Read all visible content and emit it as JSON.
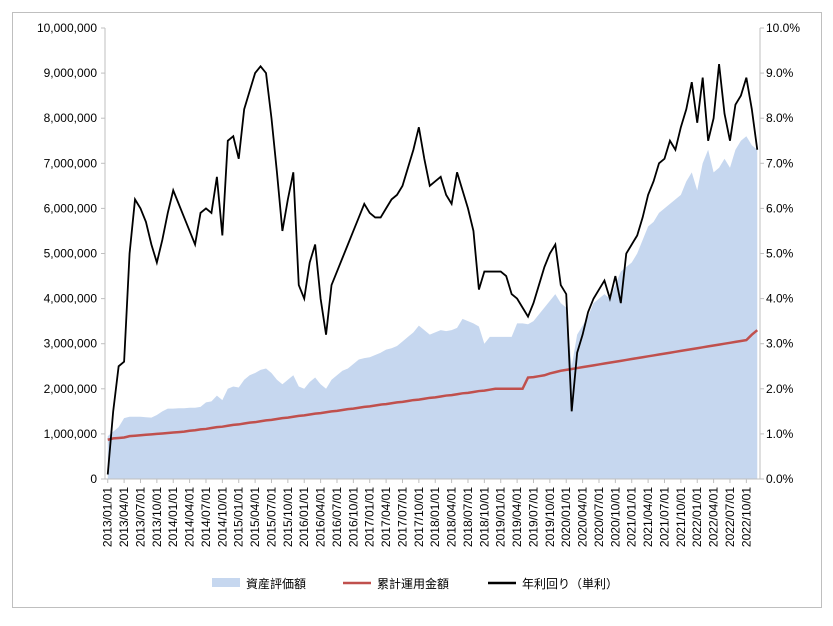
{
  "chart_data": {
    "type": "line",
    "categories": [
      "2013/01/01",
      null,
      null,
      "2013/04/01",
      null,
      null,
      "2013/07/01",
      null,
      null,
      "2013/10/01",
      null,
      null,
      "2014/01/01",
      null,
      null,
      "2014/04/01",
      null,
      null,
      "2014/07/01",
      null,
      null,
      "2014/10/01",
      null,
      null,
      "2015/01/01",
      null,
      null,
      "2015/04/01",
      null,
      null,
      "2015/07/01",
      null,
      null,
      "2015/10/01",
      null,
      null,
      "2016/01/01",
      null,
      null,
      "2016/04/01",
      null,
      null,
      "2016/07/01",
      null,
      null,
      "2016/10/01",
      null,
      null,
      "2017/01/01",
      null,
      null,
      "2017/04/01",
      null,
      null,
      "2017/07/01",
      null,
      null,
      "2017/10/01",
      null,
      null,
      "2018/01/01",
      null,
      null,
      "2018/04/01",
      null,
      null,
      "2018/07/01",
      null,
      null,
      "2018/10/01",
      null,
      null,
      "2019/01/01",
      null,
      null,
      "2019/04/01",
      null,
      null,
      "2019/07/01",
      null,
      null,
      "2019/10/01",
      null,
      null,
      "2020/01/01",
      null,
      null,
      "2020/04/01",
      null,
      null,
      "2020/07/01",
      null,
      null,
      "2020/10/01",
      null,
      null,
      "2021/01/01",
      null,
      null,
      "2021/04/01",
      null,
      null,
      "2021/07/01",
      null,
      null,
      "2021/10/01",
      null,
      null,
      "2022/01/01",
      null,
      null,
      "2022/04/01",
      null,
      null,
      "2022/07/01",
      null,
      null,
      "2022/10/01",
      null,
      null
    ],
    "series": [
      {
        "name": "資産評価額",
        "type": "area",
        "color": "#c6d7ef",
        "values": [
          950000,
          1050000,
          1150000,
          1350000,
          1380000,
          1380000,
          1380000,
          1370000,
          1360000,
          1420000,
          1500000,
          1560000,
          1560000,
          1570000,
          1570000,
          1580000,
          1580000,
          1600000,
          1700000,
          1720000,
          1850000,
          1750000,
          2000000,
          2050000,
          2030000,
          2200000,
          2300000,
          2350000,
          2420000,
          2450000,
          2350000,
          2200000,
          2100000,
          2200000,
          2300000,
          2050000,
          2000000,
          2150000,
          2250000,
          2100000,
          2000000,
          2200000,
          2300000,
          2400000,
          2450000,
          2550000,
          2650000,
          2680000,
          2700000,
          2750000,
          2800000,
          2870000,
          2900000,
          2950000,
          3050000,
          3150000,
          3250000,
          3400000,
          3300000,
          3200000,
          3250000,
          3300000,
          3280000,
          3300000,
          3350000,
          3550000,
          3500000,
          3450000,
          3380000,
          3000000,
          3150000,
          3150000,
          3150000,
          3150000,
          3150000,
          3450000,
          3450000,
          3430000,
          3500000,
          3650000,
          3800000,
          3950000,
          4100000,
          3900000,
          3800000,
          2500000,
          3200000,
          3400000,
          3600000,
          3900000,
          4000000,
          4100000,
          4000000,
          4300000,
          4600000,
          4700000,
          4800000,
          5000000,
          5300000,
          5600000,
          5700000,
          5900000,
          6000000,
          6100000,
          6200000,
          6300000,
          6600000,
          6800000,
          6400000,
          7000000,
          7300000,
          6800000,
          6900000,
          7100000,
          6900000,
          7300000,
          7500000,
          7600000,
          7400000,
          7300000
        ]
      },
      {
        "name": "累計運用金額",
        "type": "line",
        "color": "#c0504d",
        "values": [
          870000,
          900000,
          910000,
          920000,
          950000,
          960000,
          970000,
          980000,
          990000,
          1000000,
          1010000,
          1020000,
          1030000,
          1040000,
          1050000,
          1070000,
          1080000,
          1100000,
          1110000,
          1130000,
          1150000,
          1160000,
          1180000,
          1200000,
          1210000,
          1230000,
          1250000,
          1260000,
          1280000,
          1300000,
          1310000,
          1330000,
          1350000,
          1360000,
          1380000,
          1400000,
          1410000,
          1430000,
          1450000,
          1460000,
          1480000,
          1500000,
          1510000,
          1530000,
          1550000,
          1560000,
          1580000,
          1600000,
          1610000,
          1630000,
          1650000,
          1660000,
          1680000,
          1700000,
          1710000,
          1730000,
          1750000,
          1760000,
          1780000,
          1800000,
          1810000,
          1830000,
          1850000,
          1860000,
          1880000,
          1900000,
          1910000,
          1930000,
          1950000,
          1960000,
          1980000,
          2000000,
          2000000,
          2000000,
          2000000,
          2000000,
          2000000,
          2250000,
          2260000,
          2280000,
          2300000,
          2340000,
          2370000,
          2400000,
          2420000,
          2440000,
          2460000,
          2480000,
          2500000,
          2520000,
          2540000,
          2560000,
          2580000,
          2600000,
          2620000,
          2640000,
          2660000,
          2680000,
          2700000,
          2720000,
          2740000,
          2760000,
          2780000,
          2800000,
          2820000,
          2840000,
          2860000,
          2880000,
          2900000,
          2920000,
          2940000,
          2960000,
          2980000,
          3000000,
          3020000,
          3040000,
          3060000,
          3080000,
          3200000,
          3300000
        ]
      },
      {
        "name": "年利回り（単利）",
        "type": "line",
        "axis": "y2",
        "color": "#000000",
        "values": [
          0.1,
          1.5,
          2.5,
          2.6,
          5.0,
          6.2,
          6.0,
          5.7,
          5.2,
          4.8,
          5.3,
          5.9,
          6.4,
          6.1,
          5.8,
          5.5,
          5.2,
          5.9,
          6.0,
          5.9,
          6.7,
          5.4,
          7.5,
          7.6,
          7.1,
          8.2,
          8.6,
          9.0,
          9.15,
          9.0,
          8.0,
          6.8,
          5.5,
          6.2,
          6.8,
          4.3,
          4.0,
          4.8,
          5.2,
          4.0,
          3.2,
          4.3,
          4.6,
          4.9,
          5.2,
          5.5,
          5.8,
          6.1,
          5.9,
          5.8,
          5.8,
          6.0,
          6.2,
          6.3,
          6.5,
          6.9,
          7.3,
          7.8,
          7.1,
          6.5,
          6.6,
          6.7,
          6.3,
          6.1,
          6.8,
          6.4,
          6.0,
          5.5,
          4.2,
          4.6,
          4.6,
          4.6,
          4.6,
          4.5,
          4.1,
          4.0,
          3.8,
          3.6,
          3.9,
          4.3,
          4.7,
          5.0,
          5.2,
          4.3,
          4.1,
          1.5,
          2.8,
          3.2,
          3.7,
          4.0,
          4.2,
          4.4,
          4.0,
          4.5,
          3.9,
          5.0,
          5.2,
          5.4,
          5.8,
          6.3,
          6.6,
          7.0,
          7.1,
          7.5,
          7.3,
          7.8,
          8.2,
          8.8,
          7.9,
          8.9,
          7.5,
          8.0,
          9.2,
          8.1,
          7.5,
          8.3,
          8.5,
          8.9,
          8.2,
          7.3
        ]
      }
    ],
    "ylim": [
      0,
      10000000
    ],
    "yticks": [
      {
        "value": 0,
        "label": "0"
      },
      {
        "value": 1000000,
        "label": "1,000,000"
      },
      {
        "value": 2000000,
        "label": "2,000,000"
      },
      {
        "value": 3000000,
        "label": "3,000,000"
      },
      {
        "value": 4000000,
        "label": "4,000,000"
      },
      {
        "value": 5000000,
        "label": "5,000,000"
      },
      {
        "value": 6000000,
        "label": "6,000,000"
      },
      {
        "value": 7000000,
        "label": "7,000,000"
      },
      {
        "value": 8000000,
        "label": "8,000,000"
      },
      {
        "value": 9000000,
        "label": "9,000,000"
      },
      {
        "value": 10000000,
        "label": "10,000,000"
      }
    ],
    "y2lim": [
      0,
      10
    ],
    "y2ticks": [
      {
        "value": 0,
        "label": "0.0%"
      },
      {
        "value": 1,
        "label": "1.0%"
      },
      {
        "value": 2,
        "label": "2.0%"
      },
      {
        "value": 3,
        "label": "3.0%"
      },
      {
        "value": 4,
        "label": "4.0%"
      },
      {
        "value": 5,
        "label": "5.0%"
      },
      {
        "value": 6,
        "label": "6.0%"
      },
      {
        "value": 7,
        "label": "7.0%"
      },
      {
        "value": 8,
        "label": "8.0%"
      },
      {
        "value": 9,
        "label": "9.0%"
      },
      {
        "value": 10,
        "label": "10.0%"
      }
    ],
    "legend": "bottom"
  }
}
